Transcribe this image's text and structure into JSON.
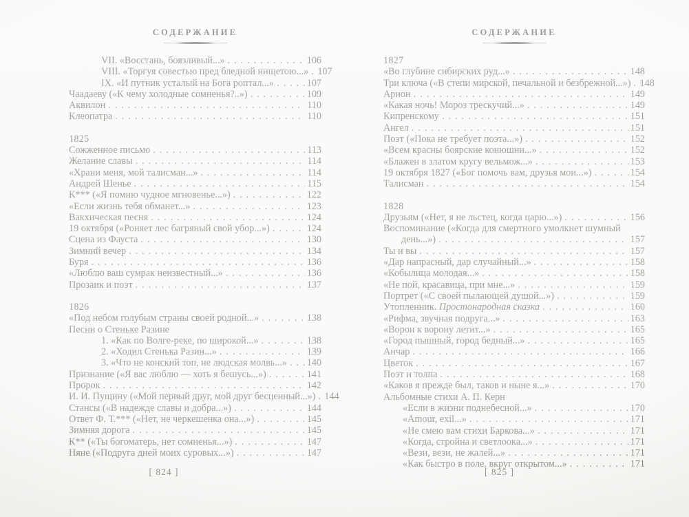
{
  "pages": [
    {
      "header": "СОДЕРЖАНИЕ",
      "folio": "[ 824 ]",
      "sections": [
        {
          "year": "",
          "entries": [
            {
              "t": "VII. «Восстань, боязливый...»",
              "p": "106",
              "ind": true
            },
            {
              "t": "VIII. «Торгуя совестью пред бледной нищетою...»",
              "p": "107",
              "ind": true
            },
            {
              "t": "IX. «И путник усталый на Бога роптал...»",
              "p": "107",
              "ind": true
            },
            {
              "t": "Чаадаеву («К чему холодные сомненья?..»)",
              "p": "109"
            },
            {
              "t": "Аквилон",
              "p": "110"
            },
            {
              "t": "Клеопатра",
              "p": "110"
            }
          ]
        },
        {
          "year": "1825",
          "entries": [
            {
              "t": "Сожженное письмо",
              "p": "113"
            },
            {
              "t": "Желание славы",
              "p": "114"
            },
            {
              "t": "«Храни меня, мой талисман...»",
              "p": "114"
            },
            {
              "t": "Андрей Шенье",
              "p": "115"
            },
            {
              "t": "К*** («Я помню чудное мгновенье...»)",
              "p": "122"
            },
            {
              "t": "«Если жизнь тебя обманет...»",
              "p": "123"
            },
            {
              "t": "Вакхическая песня",
              "p": "124"
            },
            {
              "t": "19 октября («Роняет лес багряный свой убор...»)",
              "p": "124"
            },
            {
              "t": "Сцена из Фауста",
              "p": "130"
            },
            {
              "t": "Зимний вечер",
              "p": "134"
            },
            {
              "t": "Буря",
              "p": "136"
            },
            {
              "t": "«Люблю ваш сумрак неизвестный...»",
              "p": "136"
            },
            {
              "t": "Прозаик и поэт",
              "p": "137"
            }
          ]
        },
        {
          "year": "1826",
          "entries": [
            {
              "t": "«Под небом голубым страны своей родной...»",
              "p": "138"
            },
            {
              "t": "Песни о Стеньке Разине"
            },
            {
              "t": "1. «Как по Волге-реке, по широкой...»",
              "p": "138",
              "ind": true
            },
            {
              "t": "2. «Ходил Стенька Разин...»",
              "p": "139",
              "ind": true
            },
            {
              "t": "3. «Что не конский топ, не людская молвь...»",
              "p": "140",
              "ind": true
            },
            {
              "t": "Признание («Я вас люблю — хоть я бешусь...»)",
              "p": "141"
            },
            {
              "t": "Пророк",
              "p": "142"
            },
            {
              "t": "И. И. Пущину («Мой первый друг, мой друг бесценный...»)",
              "p": "144"
            },
            {
              "t": "Стансы («В надежде славы и добра...»)",
              "p": "144"
            },
            {
              "t": "Ответ Ф. Т.*** («Нет, не черкешенка она...»)",
              "p": "145"
            },
            {
              "t": "Зимняя дорога",
              "p": "145"
            },
            {
              "t": "К** («Ты богоматерь, нет сомненья...»)",
              "p": "147"
            },
            {
              "t": "Няне («Подруга дней моих суровых...»)",
              "p": "147"
            }
          ]
        }
      ]
    },
    {
      "header": "СОДЕРЖАНИЕ",
      "folio": "[ 825 ]",
      "sections": [
        {
          "year": "1827",
          "entries": [
            {
              "t": "«Во глубине сибирских руд...»",
              "p": "148"
            },
            {
              "t": "Три ключа («В степи мирской, печальной и безбрежной...»)",
              "p": "148"
            },
            {
              "t": "Арион",
              "p": "149"
            },
            {
              "t": "«Какая ночь! Мороз трескучий...»",
              "p": "149"
            },
            {
              "t": "Кипренскому",
              "p": "151"
            },
            {
              "t": "Ангел",
              "p": "151"
            },
            {
              "t": "Поэт («Пока не требует поэта...»)",
              "p": "152"
            },
            {
              "t": "«Всем красны боярские конюшни...»",
              "p": "152"
            },
            {
              "t": "«Блажен в златом кругу вельмож...»",
              "p": "153"
            },
            {
              "t": "19 октября 1827 («Бог помочь вам, друзья мои...»)",
              "p": "154"
            },
            {
              "t": "Талисман",
              "p": "154"
            }
          ]
        },
        {
          "year": "1828",
          "entries": [
            {
              "t": "Друзьям («Нет, я не льстец, когда царю...»)",
              "p": "156"
            },
            {
              "t": "Воспоминание («Когда для смертного умолкнет шумный",
              "t2": "день...»)",
              "p": "157"
            },
            {
              "t": "Ты и вы",
              "p": "157"
            },
            {
              "t": "«Дар напрасный, дар случайный...»",
              "p": "158"
            },
            {
              "t": "«Кобылица молодая...»",
              "p": "158"
            },
            {
              "t": "«Не пой, красавица, при мне...»",
              "p": "159"
            },
            {
              "t": "Портрет («С своей пылающей душой...»)",
              "p": "159"
            },
            {
              "t": "Утопленник.",
              "it": " Простонародная сказка",
              "p": "160"
            },
            {
              "t": "«Рифма, звучная подруга...»",
              "p": "163"
            },
            {
              "t": "«Ворон к ворону летит...»",
              "p": "165"
            },
            {
              "t": "«Город пышный, город бедный...»",
              "p": "165"
            },
            {
              "t": "Анчар",
              "p": "166"
            },
            {
              "t": "Цветок",
              "p": "167"
            },
            {
              "t": "Поэт и толпа",
              "p": "168"
            },
            {
              "t": "«Каков я прежде был, таков и ныне я...»",
              "p": "170"
            },
            {
              "t": "Альбомные стихи А. П. Керн"
            },
            {
              "t": "«Если в жизни поднебесной...»",
              "p": "170",
              "ind": true
            },
            {
              "t": "«Amour, exil...»",
              "p": "171",
              "ind": true
            },
            {
              "t": "«Не смею вам стихи Баркова...»",
              "p": "171",
              "ind": true
            },
            {
              "t": "«Когда, стройна и светлоока...»",
              "p": "171",
              "ind": true
            },
            {
              "t": "«Вези, вези, не жалей...»",
              "p": "171",
              "ind": true
            },
            {
              "t": "«Как быстро в поле, вкруг открытом...»",
              "p": "171",
              "ind": true
            }
          ]
        }
      ]
    }
  ]
}
